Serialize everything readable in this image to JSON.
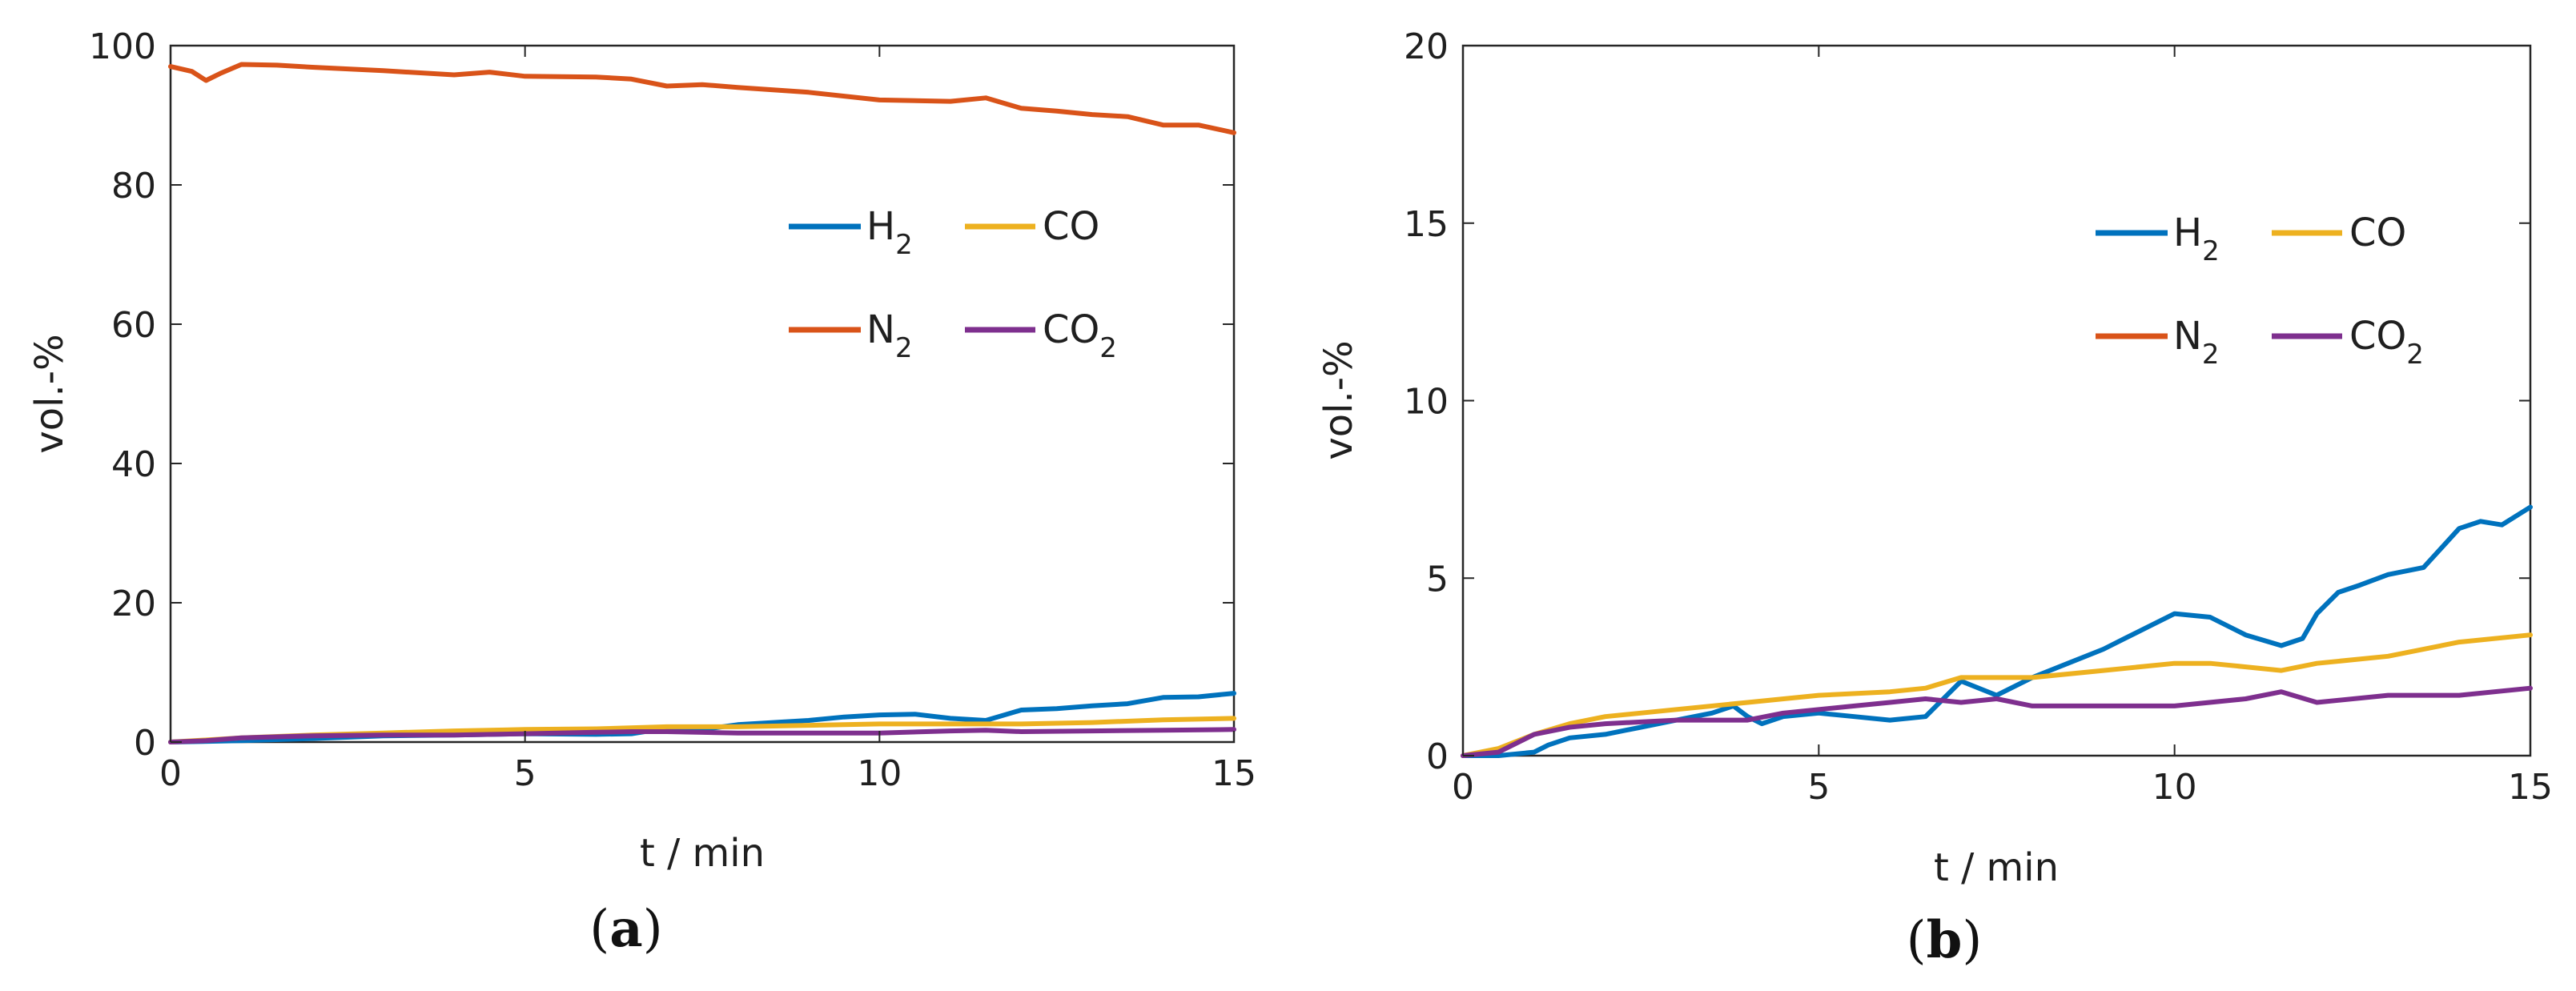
{
  "chart_data": [
    {
      "type": "line",
      "panel": "a",
      "caption_open": "(",
      "caption_letter": "a",
      "caption_close": ")",
      "xlabel": "t / min",
      "ylabel": "vol.-%",
      "xlim": [
        0,
        15
      ],
      "ylim": [
        0,
        100
      ],
      "xticks": [
        "0",
        "5",
        "10",
        "15"
      ],
      "yticks": [
        "0",
        "20",
        "40",
        "60",
        "80",
        "100"
      ],
      "legend_position": "center-right",
      "series": [
        {
          "name": "H2",
          "base": "H",
          "sub": "2",
          "color": "#0072BD",
          "x": [
            0,
            1,
            2,
            3,
            4,
            5,
            6,
            6.5,
            7,
            7.5,
            8,
            8.5,
            9,
            9.5,
            10,
            10.5,
            11,
            11.5,
            12,
            12.5,
            13,
            13.5,
            14,
            14.5,
            15
          ],
          "values": [
            0,
            0.2,
            0.5,
            0.9,
            1.0,
            1.2,
            1.1,
            1.2,
            2.0,
            1.8,
            2.5,
            2.8,
            3.1,
            3.6,
            3.9,
            4.0,
            3.4,
            3.1,
            4.6,
            4.8,
            5.2,
            5.5,
            6.4,
            6.5,
            7.0
          ]
        },
        {
          "name": "CO",
          "base": "CO",
          "sub": "",
          "color": "#EDB120",
          "x": [
            0,
            1,
            2,
            3,
            4,
            5,
            6,
            7,
            8,
            9,
            10,
            11,
            12,
            13,
            14,
            15
          ],
          "values": [
            0,
            0.6,
            1.0,
            1.3,
            1.6,
            1.8,
            1.9,
            2.2,
            2.2,
            2.4,
            2.6,
            2.6,
            2.6,
            2.8,
            3.2,
            3.4
          ]
        },
        {
          "name": "N2",
          "base": "N",
          "sub": "2",
          "color": "#D95319",
          "x": [
            0,
            0.3,
            0.5,
            0.7,
            1,
            1.5,
            2,
            3,
            4,
            4.5,
            5,
            6,
            6.5,
            7,
            7.5,
            8,
            9,
            10,
            11,
            11.5,
            12,
            12.5,
            13,
            13.5,
            14,
            14.5,
            15
          ],
          "values": [
            97,
            96.3,
            95,
            96,
            97.3,
            97.2,
            96.9,
            96.4,
            95.8,
            96.2,
            95.6,
            95.5,
            95.2,
            94.2,
            94.4,
            94,
            93.3,
            92.2,
            92,
            92.5,
            91,
            90.6,
            90.1,
            89.8,
            88.6,
            88.6,
            87.5
          ]
        },
        {
          "name": "CO2",
          "base": "CO",
          "sub": "2",
          "color": "#7E2F8E",
          "x": [
            0,
            0.5,
            1,
            2,
            3,
            4,
            5,
            6,
            6.5,
            7,
            8,
            9,
            10,
            11,
            11.5,
            12,
            13,
            14,
            15
          ],
          "values": [
            0,
            0.2,
            0.6,
            0.9,
            1.0,
            1.0,
            1.2,
            1.4,
            1.5,
            1.5,
            1.3,
            1.3,
            1.3,
            1.6,
            1.7,
            1.5,
            1.6,
            1.7,
            1.8
          ]
        }
      ]
    },
    {
      "type": "line",
      "panel": "b",
      "caption_open": "(",
      "caption_letter": "b",
      "caption_close": ")",
      "xlabel": "t / min",
      "ylabel": "vol.-%",
      "xlim": [
        0,
        15
      ],
      "ylim": [
        0,
        20
      ],
      "xticks": [
        "0",
        "5",
        "10",
        "15"
      ],
      "yticks": [
        "0",
        "5",
        "10",
        "15",
        "20"
      ],
      "legend_position": "top-right",
      "series": [
        {
          "name": "H2",
          "base": "H",
          "sub": "2",
          "color": "#0072BD",
          "x": [
            0,
            0.5,
            1,
            1.2,
            1.5,
            2,
            2.5,
            3,
            3.5,
            3.8,
            4,
            4.2,
            4.5,
            5,
            5.5,
            6,
            6.5,
            7,
            7.5,
            8,
            8.5,
            9,
            9.3,
            9.6,
            10,
            10.5,
            11,
            11.5,
            11.8,
            12,
            12.3,
            12.6,
            13,
            13.5,
            14,
            14.3,
            14.6,
            15
          ],
          "values": [
            0,
            0,
            0.1,
            0.3,
            0.5,
            0.6,
            0.8,
            1.0,
            1.2,
            1.4,
            1.1,
            0.9,
            1.1,
            1.2,
            1.1,
            1.0,
            1.1,
            2.1,
            1.7,
            2.2,
            2.6,
            3.0,
            3.3,
            3.6,
            4.0,
            3.9,
            3.4,
            3.1,
            3.3,
            4.0,
            4.6,
            4.8,
            5.1,
            5.3,
            6.4,
            6.6,
            6.5,
            7.0
          ]
        },
        {
          "name": "CO",
          "base": "CO",
          "sub": "",
          "color": "#EDB120",
          "x": [
            0,
            0.5,
            1,
            1.5,
            2,
            3,
            4,
            5,
            6,
            6.5,
            7,
            8,
            9,
            10,
            10.5,
            11,
            11.5,
            12,
            13,
            14,
            15
          ],
          "values": [
            0,
            0.2,
            0.6,
            0.9,
            1.1,
            1.3,
            1.5,
            1.7,
            1.8,
            1.9,
            2.2,
            2.2,
            2.4,
            2.6,
            2.6,
            2.5,
            2.4,
            2.6,
            2.8,
            3.2,
            3.4
          ]
        },
        {
          "name": "N2",
          "base": "N",
          "sub": "2",
          "color": "#D95319",
          "x": [],
          "values": []
        },
        {
          "name": "CO2",
          "base": "CO",
          "sub": "2",
          "color": "#7E2F8E",
          "x": [
            0,
            0.5,
            1,
            1.5,
            2,
            3,
            4,
            4.5,
            5,
            5.5,
            6,
            6.5,
            7,
            7.5,
            8,
            9,
            10,
            11,
            11.5,
            12,
            13,
            14,
            15
          ],
          "values": [
            0,
            0.1,
            0.6,
            0.8,
            0.9,
            1.0,
            1.0,
            1.2,
            1.3,
            1.4,
            1.5,
            1.6,
            1.5,
            1.6,
            1.4,
            1.4,
            1.4,
            1.6,
            1.8,
            1.5,
            1.7,
            1.7,
            1.9
          ]
        }
      ]
    }
  ]
}
